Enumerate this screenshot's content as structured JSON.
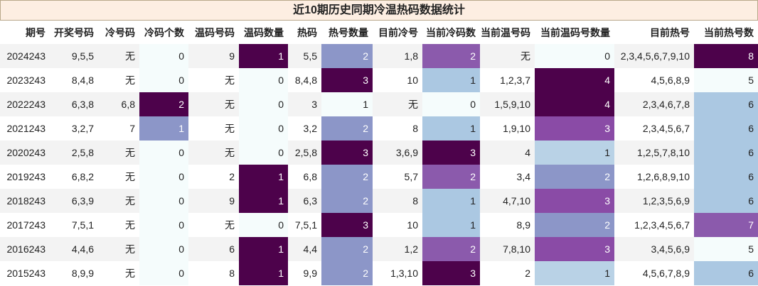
{
  "title": "近10期历史同期冷温热码数据统计",
  "columns": [
    "期号",
    "开奖号码",
    "冷号码",
    "冷码个数",
    "温码号码",
    "温码数量",
    "热码",
    "热号数量",
    "目前冷号",
    "当前冷码数",
    "当前温号码",
    "当前温码号数量",
    "目前热号",
    "当前热号数"
  ],
  "rows": [
    [
      "2024243",
      "9,5,5",
      "无",
      "0",
      "9",
      "1",
      "5,5",
      "2",
      "1,8",
      "2",
      "无",
      "0",
      "2,3,4,5,6,7,9,10",
      "8"
    ],
    [
      "2023243",
      "8,4,8",
      "无",
      "0",
      "无",
      "0",
      "8,4,8",
      "3",
      "10",
      "1",
      "1,2,3,7",
      "4",
      "4,5,6,8,9",
      "5"
    ],
    [
      "2022243",
      "6,3,8",
      "6,8",
      "2",
      "无",
      "0",
      "3",
      "1",
      "无",
      "0",
      "1,5,9,10",
      "4",
      "2,3,4,6,7,8",
      "6"
    ],
    [
      "2021243",
      "3,2,7",
      "7",
      "1",
      "无",
      "0",
      "3,2",
      "2",
      "8",
      "1",
      "1,9,10",
      "3",
      "2,3,4,5,6,7",
      "6"
    ],
    [
      "2020243",
      "2,5,8",
      "无",
      "0",
      "无",
      "0",
      "2,5,8",
      "3",
      "3,6,9",
      "3",
      "4",
      "1",
      "1,2,5,7,8,10",
      "6"
    ],
    [
      "2019243",
      "6,8,2",
      "无",
      "0",
      "2",
      "1",
      "6,8",
      "2",
      "5,7",
      "2",
      "3,4",
      "2",
      "1,2,6,8,9,10",
      "6"
    ],
    [
      "2018243",
      "6,3,9",
      "无",
      "0",
      "9",
      "1",
      "6,3",
      "2",
      "8",
      "1",
      "4,7,10",
      "3",
      "1,2,3,5,6,9",
      "6"
    ],
    [
      "2017243",
      "7,5,1",
      "无",
      "0",
      "无",
      "0",
      "7,5,1",
      "3",
      "10",
      "1",
      "8,9",
      "2",
      "1,2,3,4,5,6,7",
      "7"
    ],
    [
      "2016243",
      "4,4,6",
      "无",
      "0",
      "6",
      "1",
      "4,4",
      "2",
      "1,2",
      "2",
      "7,8,10",
      "3",
      "3,4,5,6,9",
      "5"
    ],
    [
      "2015243",
      "8,9,9",
      "无",
      "0",
      "8",
      "1",
      "9,9",
      "2",
      "1,3,10",
      "3",
      "2",
      "1",
      "4,5,6,7,8,9",
      "6"
    ]
  ],
  "cell_colors": {
    "c0": "#f5fcfc",
    "c1": "#b9d2e6",
    "c2": "#8c96c8",
    "c3": "#8a4ba6",
    "c4": "#4d024b"
  }
}
